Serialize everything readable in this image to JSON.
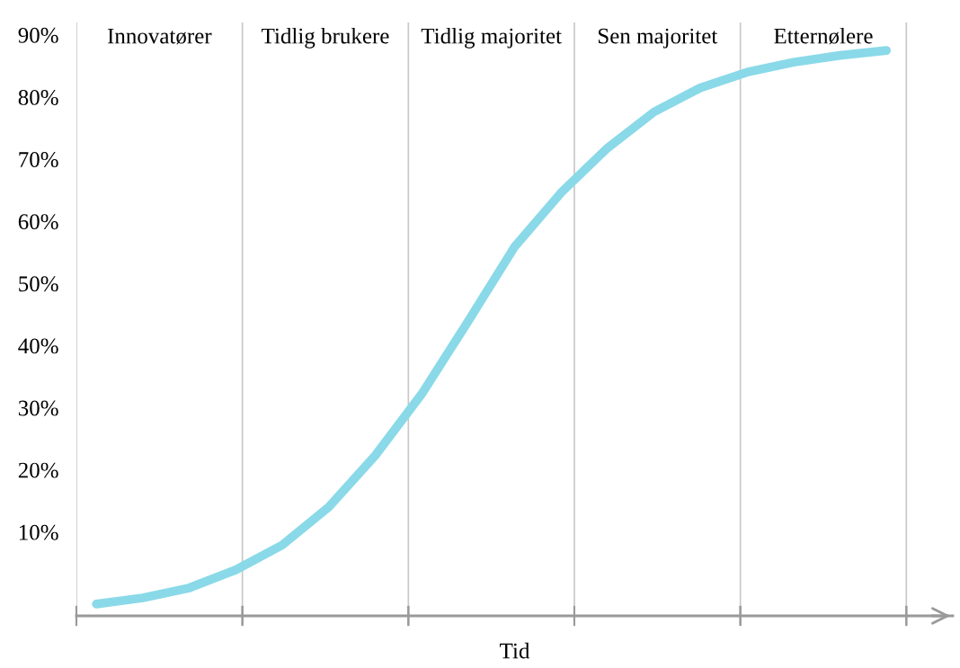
{
  "chart_data": {
    "type": "line",
    "xlabel": "Tid",
    "annotations": [
      "Innovatører",
      "Tidlig brukere",
      "Tidlig majoritet",
      "Sen majoritet",
      "Etternølere"
    ],
    "categories": [
      null,
      null,
      null,
      null,
      null,
      null,
      null,
      null,
      null,
      null,
      null,
      null,
      null,
      null,
      null,
      null,
      null,
      null
    ],
    "series": [
      {
        "color": "#8ad9e8",
        "values": [
          -1.6,
          -0.6,
          1.0,
          3.9,
          7.9,
          14.0,
          22.3,
          32.2,
          43.9,
          55.9,
          64.6,
          71.8,
          77.6,
          81.5,
          84.0,
          85.6,
          86.7,
          87.5
        ]
      }
    ],
    "ylim": [
      -3.5,
      92
    ],
    "yticks": [
      {
        "value": 10,
        "label": "10%"
      },
      {
        "value": 20,
        "label": "20%"
      },
      {
        "value": 30,
        "label": "30%"
      },
      {
        "value": 40,
        "label": "40%"
      },
      {
        "value": 50,
        "label": "50%"
      },
      {
        "value": 60,
        "label": "60%"
      },
      {
        "value": 70,
        "label": "70%"
      },
      {
        "value": 80,
        "label": "80%"
      },
      {
        "value": 90,
        "label": "90%"
      }
    ],
    "grid": "x",
    "tick_labels": "y",
    "line_style": "solid",
    "marker": "none"
  }
}
